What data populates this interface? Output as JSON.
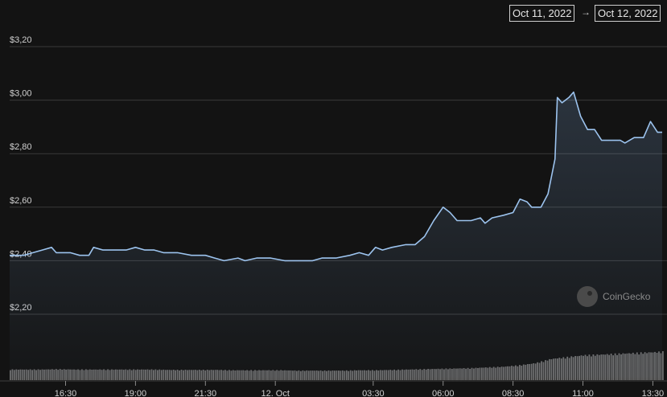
{
  "date_range": {
    "from": "Oct 11, 2022",
    "arrow": "→",
    "to": "Oct 12, 2022"
  },
  "watermark": "CoinGecko",
  "colors": {
    "background": "#131313",
    "line": "#9cc3ee",
    "volume": "#6f6f6f",
    "grid": "#3a3a3a"
  },
  "chart_data": {
    "type": "line",
    "title": "",
    "xlabel": "",
    "ylabel": "",
    "y_ticks": [
      {
        "value": 3.2,
        "label": "$3,20"
      },
      {
        "value": 3.0,
        "label": "$3,00"
      },
      {
        "value": 2.8,
        "label": "$2,80"
      },
      {
        "value": 2.6,
        "label": "$2,60"
      },
      {
        "value": 2.4,
        "label": "$2,40"
      },
      {
        "value": 2.2,
        "label": "$2,20"
      }
    ],
    "ylim": [
      2.0,
      3.3
    ],
    "x_range": [
      "2022-10-11 14:30",
      "2022-10-12 13:50"
    ],
    "x_ticks": [
      {
        "time": "2022-10-11 16:30",
        "label": "16:30"
      },
      {
        "time": "2022-10-11 19:00",
        "label": "19:00"
      },
      {
        "time": "2022-10-11 21:30",
        "label": "21:30"
      },
      {
        "time": "2022-10-12 00:00",
        "label": "12. Oct"
      },
      {
        "time": "2022-10-12 03:30",
        "label": "03:30"
      },
      {
        "time": "2022-10-12 06:00",
        "label": "06:00"
      },
      {
        "time": "2022-10-12 08:30",
        "label": "08:30"
      },
      {
        "time": "2022-10-12 11:00",
        "label": "11:00"
      },
      {
        "time": "2022-10-12 13:30",
        "label": "13:30"
      }
    ],
    "grid": true,
    "series": [
      {
        "values": [
          [
            "2022-10-11 14:30",
            2.42
          ],
          [
            "2022-10-11 15:00",
            2.42
          ],
          [
            "2022-10-11 15:20",
            2.43
          ],
          [
            "2022-10-11 15:40",
            2.44
          ],
          [
            "2022-10-11 16:00",
            2.45
          ],
          [
            "2022-10-11 16:10",
            2.43
          ],
          [
            "2022-10-11 16:40",
            2.43
          ],
          [
            "2022-10-11 17:00",
            2.42
          ],
          [
            "2022-10-11 17:20",
            2.42
          ],
          [
            "2022-10-11 17:30",
            2.45
          ],
          [
            "2022-10-11 17:50",
            2.44
          ],
          [
            "2022-10-11 18:10",
            2.44
          ],
          [
            "2022-10-11 18:40",
            2.44
          ],
          [
            "2022-10-11 19:00",
            2.45
          ],
          [
            "2022-10-11 19:20",
            2.44
          ],
          [
            "2022-10-11 19:40",
            2.44
          ],
          [
            "2022-10-11 20:00",
            2.43
          ],
          [
            "2022-10-11 20:30",
            2.43
          ],
          [
            "2022-10-11 21:00",
            2.42
          ],
          [
            "2022-10-11 21:30",
            2.42
          ],
          [
            "2022-10-11 21:50",
            2.41
          ],
          [
            "2022-10-11 22:10",
            2.4
          ],
          [
            "2022-10-11 22:40",
            2.41
          ],
          [
            "2022-10-11 22:55",
            2.4
          ],
          [
            "2022-10-11 23:20",
            2.41
          ],
          [
            "2022-10-11 23:50",
            2.41
          ],
          [
            "2022-10-12 00:20",
            2.4
          ],
          [
            "2022-10-12 00:50",
            2.4
          ],
          [
            "2022-10-12 01:20",
            2.4
          ],
          [
            "2022-10-12 01:40",
            2.41
          ],
          [
            "2022-10-12 02:10",
            2.41
          ],
          [
            "2022-10-12 02:40",
            2.42
          ],
          [
            "2022-10-12 03:00",
            2.43
          ],
          [
            "2022-10-12 03:20",
            2.42
          ],
          [
            "2022-10-12 03:35",
            2.45
          ],
          [
            "2022-10-12 03:50",
            2.44
          ],
          [
            "2022-10-12 04:10",
            2.45
          ],
          [
            "2022-10-12 04:40",
            2.46
          ],
          [
            "2022-10-12 05:00",
            2.46
          ],
          [
            "2022-10-12 05:20",
            2.49
          ],
          [
            "2022-10-12 05:40",
            2.55
          ],
          [
            "2022-10-12 06:00",
            2.6
          ],
          [
            "2022-10-12 06:15",
            2.58
          ],
          [
            "2022-10-12 06:30",
            2.55
          ],
          [
            "2022-10-12 07:00",
            2.55
          ],
          [
            "2022-10-12 07:20",
            2.56
          ],
          [
            "2022-10-12 07:30",
            2.54
          ],
          [
            "2022-10-12 07:45",
            2.56
          ],
          [
            "2022-10-12 08:10",
            2.57
          ],
          [
            "2022-10-12 08:30",
            2.58
          ],
          [
            "2022-10-12 08:45",
            2.63
          ],
          [
            "2022-10-12 09:00",
            2.62
          ],
          [
            "2022-10-12 09:10",
            2.6
          ],
          [
            "2022-10-12 09:30",
            2.6
          ],
          [
            "2022-10-12 09:45",
            2.65
          ],
          [
            "2022-10-12 10:00",
            2.78
          ],
          [
            "2022-10-12 10:05",
            3.01
          ],
          [
            "2022-10-12 10:15",
            2.99
          ],
          [
            "2022-10-12 10:30",
            3.01
          ],
          [
            "2022-10-12 10:40",
            3.03
          ],
          [
            "2022-10-12 10:55",
            2.94
          ],
          [
            "2022-10-12 11:10",
            2.89
          ],
          [
            "2022-10-12 11:25",
            2.89
          ],
          [
            "2022-10-12 11:40",
            2.85
          ],
          [
            "2022-10-12 12:00",
            2.85
          ],
          [
            "2022-10-12 12:20",
            2.85
          ],
          [
            "2022-10-12 12:30",
            2.84
          ],
          [
            "2022-10-12 12:50",
            2.86
          ],
          [
            "2022-10-12 13:10",
            2.86
          ],
          [
            "2022-10-12 13:25",
            2.92
          ],
          [
            "2022-10-12 13:40",
            2.88
          ],
          [
            "2022-10-12 13:50",
            2.88
          ]
        ]
      }
    ],
    "volume_relative": [
      0.3,
      0.3,
      0.3,
      0.31,
      0.3,
      0.3,
      0.3,
      0.3,
      0.3,
      0.3,
      0.29,
      0.29,
      0.29,
      0.29,
      0.28,
      0.28,
      0.28,
      0.28,
      0.27,
      0.27,
      0.27,
      0.27,
      0.28,
      0.28,
      0.29,
      0.3,
      0.31,
      0.32,
      0.33,
      0.34,
      0.36,
      0.38,
      0.42,
      0.48,
      0.6,
      0.65,
      0.7,
      0.72,
      0.74,
      0.76,
      0.78,
      0.8
    ]
  }
}
